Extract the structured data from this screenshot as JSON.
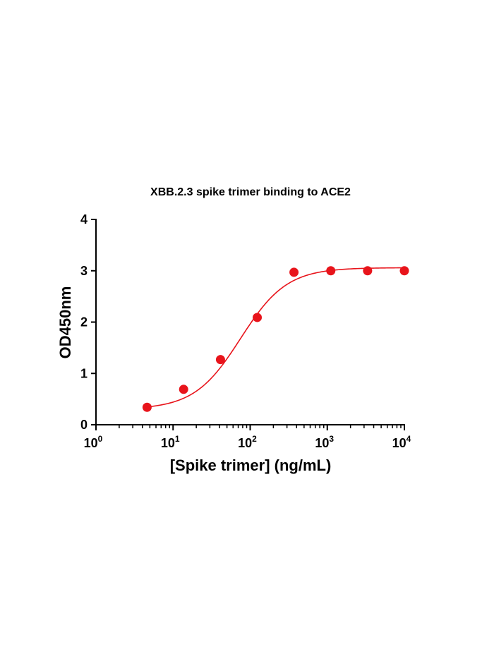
{
  "chart_data": {
    "type": "scatter",
    "title": "XBB.2.3 spike trimer binding to ACE2",
    "xlabel": "[Spike trimer] (ng/mL)",
    "ylabel": "OD450nm",
    "x_scale": "log10",
    "xlim": [
      1,
      10000
    ],
    "ylim": [
      0,
      4
    ],
    "x_ticks": [
      {
        "base": "10",
        "exp": "0",
        "value": 1
      },
      {
        "base": "10",
        "exp": "1",
        "value": 10
      },
      {
        "base": "10",
        "exp": "2",
        "value": 100
      },
      {
        "base": "10",
        "exp": "3",
        "value": 1000
      },
      {
        "base": "10",
        "exp": "4",
        "value": 10000
      }
    ],
    "y_ticks": [
      "0",
      "1",
      "2",
      "3",
      "4"
    ],
    "series": [
      {
        "color": "#e8141b",
        "points": [
          {
            "x": 4.6,
            "y": 0.34
          },
          {
            "x": 13.7,
            "y": 0.69
          },
          {
            "x": 41.2,
            "y": 1.27
          },
          {
            "x": 123.5,
            "y": 2.09
          },
          {
            "x": 370,
            "y": 2.97
          },
          {
            "x": 1111,
            "y": 3.0
          },
          {
            "x": 3333,
            "y": 3.0
          },
          {
            "x": 10000,
            "y": 3.0
          }
        ],
        "fit": {
          "model": "4PL",
          "bottom": 0.3,
          "top": 3.06,
          "ec50": 75,
          "hill": 1.45
        }
      }
    ],
    "grid": false,
    "legend": "none"
  }
}
